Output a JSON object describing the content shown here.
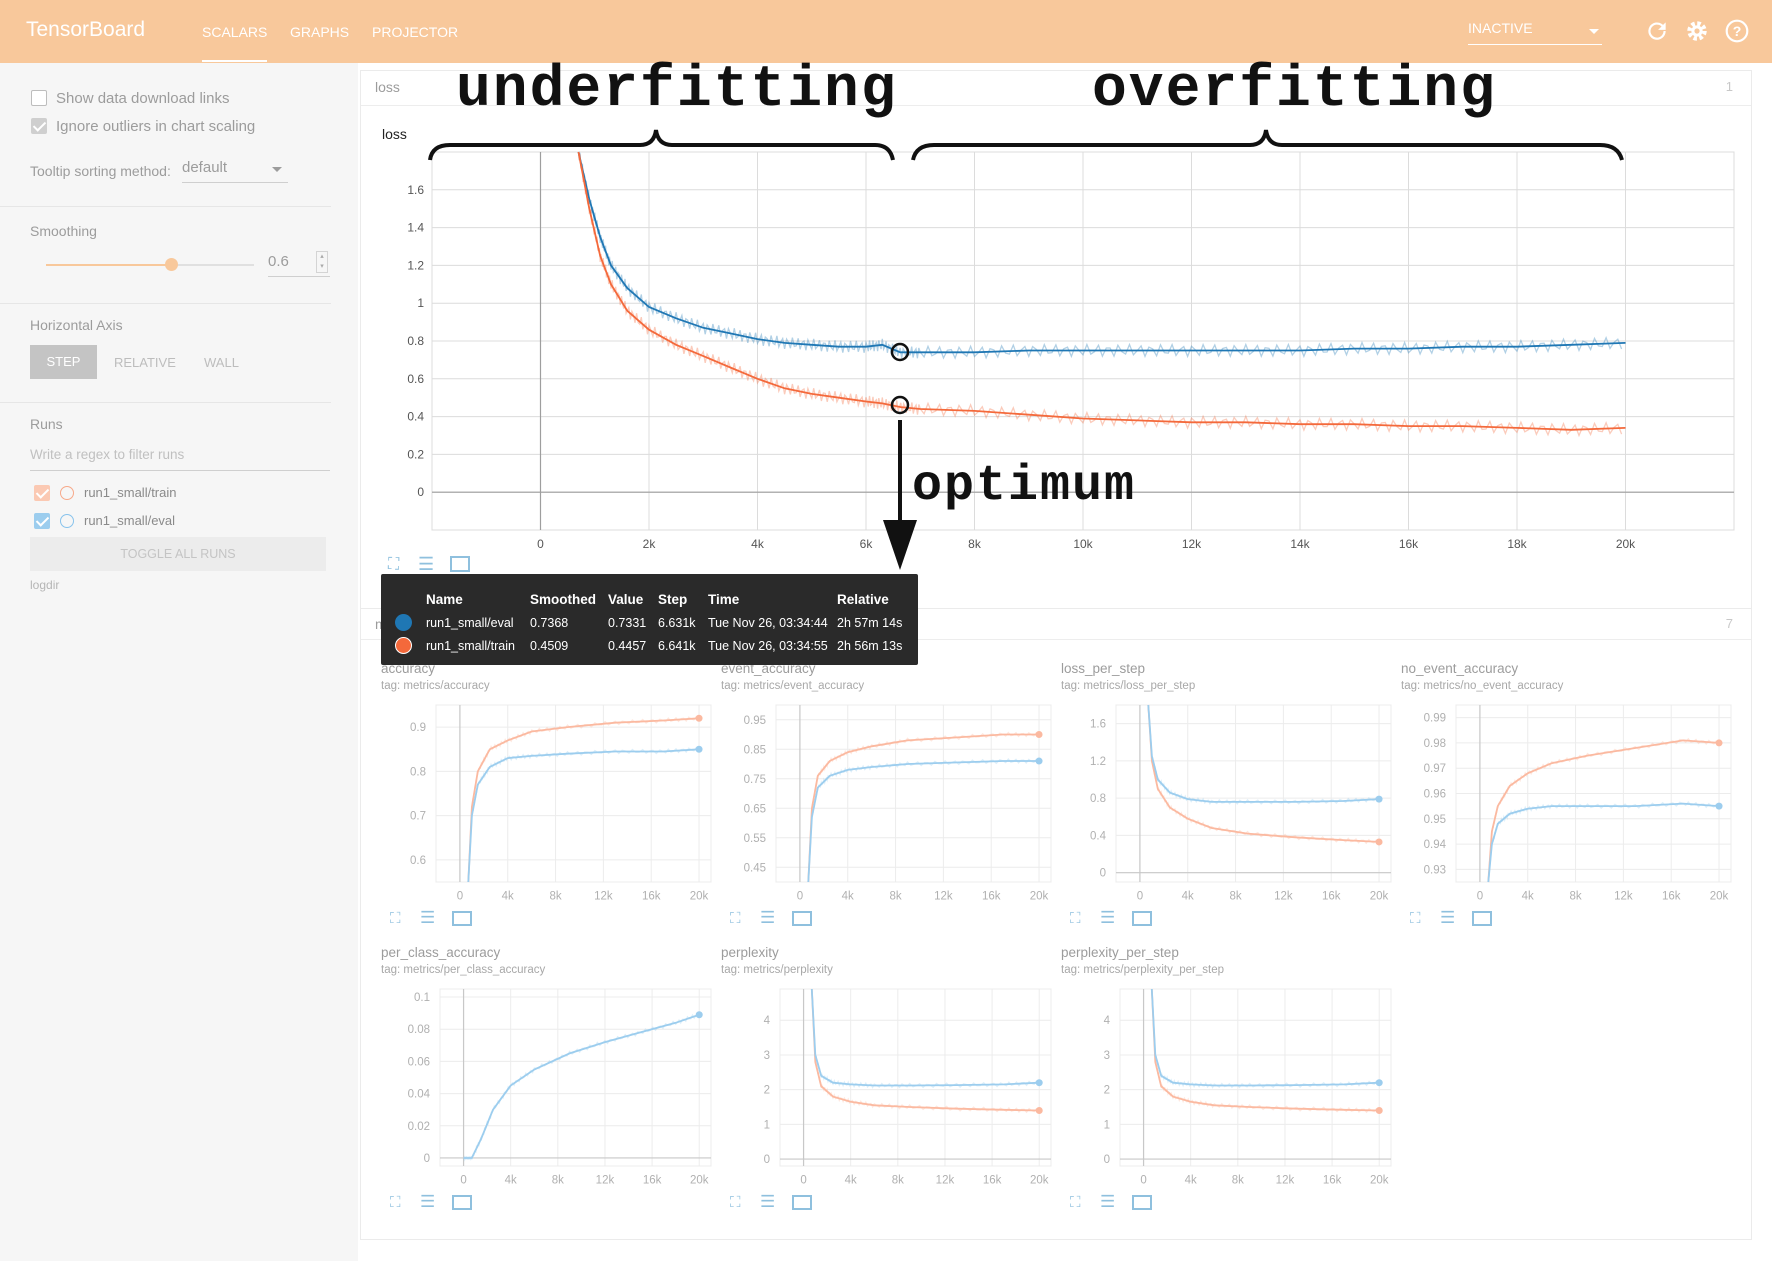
{
  "topbar": {
    "brand": "TensorBoard",
    "tabs": [
      {
        "label": "SCALARS"
      },
      {
        "label": "GRAPHS"
      },
      {
        "label": "PROJECTOR"
      }
    ],
    "status": "INACTIVE",
    "icons": [
      "refresh-icon",
      "settings-icon",
      "help-icon"
    ]
  },
  "sidebar": {
    "show_download": "Show data download links",
    "ignore_outliers": "Ignore outliers in chart scaling",
    "tooltip_label": "Tooltip sorting method:",
    "tooltip_value": "default",
    "smoothing_label": "Smoothing",
    "smoothing_value": "0.6",
    "smoothing_level": 0.6,
    "axis_label": "Horizontal Axis",
    "axis_options": [
      "STEP",
      "RELATIVE",
      "WALL"
    ],
    "runs_label": "Runs",
    "runs_filter_placeholder": "Write a regex to filter runs",
    "runs": [
      {
        "name": "run1_small/train",
        "color": "#f5a582"
      },
      {
        "name": "run1_small/eval",
        "color": "#88c3ec"
      }
    ],
    "toggle_all": "TOGGLE ALL RUNS",
    "logdir": "logdir"
  },
  "loss_section": {
    "name": "loss",
    "count": "1",
    "chart_title": "loss"
  },
  "metrics_section": {
    "name": "metrics",
    "count": "7"
  },
  "annotations": {
    "underfitting": "underfitting",
    "overfitting": "overfitting",
    "optimum": "optimum"
  },
  "tooltip": {
    "headers": [
      "Name",
      "Smoothed",
      "Value",
      "Step",
      "Time",
      "Relative"
    ],
    "rows": [
      {
        "color": "#1f77b4",
        "name": "run1_small/eval",
        "smoothed": "0.7368",
        "value": "0.7331",
        "step": "6.631k",
        "time": "Tue Nov 26, 03:34:44",
        "relative": "2h 57m 14s"
      },
      {
        "color": "#f4693b",
        "name": "run1_small/train",
        "smoothed": "0.4509",
        "value": "0.4457",
        "step": "6.641k",
        "time": "Tue Nov 26, 03:34:55",
        "relative": "2h 56m 13s"
      }
    ]
  },
  "small_charts": [
    {
      "title": "accuracy",
      "tag": "tag: metrics/accuracy"
    },
    {
      "title": "event_accuracy",
      "tag": "tag: metrics/event_accuracy"
    },
    {
      "title": "loss_per_step",
      "tag": "tag: metrics/loss_per_step"
    },
    {
      "title": "no_event_accuracy",
      "tag": "tag: metrics/no_event_accuracy"
    },
    {
      "title": "per_class_accuracy",
      "tag": "tag: metrics/per_class_accuracy"
    },
    {
      "title": "perplexity",
      "tag": "tag: metrics/perplexity"
    },
    {
      "title": "perplexity_per_step",
      "tag": "tag: metrics/perplexity_per_step"
    }
  ],
  "chart_data": [
    {
      "type": "line",
      "title": "loss",
      "x_ticks": [
        "0",
        "2k",
        "4k",
        "6k",
        "8k",
        "10k",
        "12k",
        "14k",
        "16k",
        "18k",
        "20k"
      ],
      "y_ticks": [
        "0",
        "0.2",
        "0.4",
        "0.6",
        "0.8",
        "1",
        "1.2",
        "1.4",
        "1.6"
      ],
      "xlim": [
        -2000,
        22000
      ],
      "ylim": [
        -0.2,
        1.8
      ],
      "series": [
        {
          "name": "run1_small/eval",
          "color": "#1f77b4",
          "x": [
            700,
            900,
            1100,
            1300,
            1600,
            2000,
            2500,
            3000,
            3500,
            4000,
            4500,
            5000,
            5500,
            6000,
            6300,
            6631,
            7000,
            8000,
            9000,
            10000,
            11000,
            12000,
            13000,
            14000,
            15000,
            16000,
            17000,
            18000,
            19000,
            20000
          ],
          "y": [
            1.8,
            1.55,
            1.35,
            1.2,
            1.08,
            0.98,
            0.92,
            0.87,
            0.84,
            0.81,
            0.79,
            0.78,
            0.77,
            0.77,
            0.78,
            0.74,
            0.74,
            0.74,
            0.75,
            0.75,
            0.75,
            0.75,
            0.75,
            0.75,
            0.76,
            0.76,
            0.77,
            0.77,
            0.78,
            0.79
          ]
        },
        {
          "name": "run1_small/train",
          "color": "#f4693b",
          "x": [
            700,
            900,
            1100,
            1300,
            1600,
            2000,
            2500,
            3000,
            3500,
            4000,
            4500,
            5000,
            5500,
            6000,
            6300,
            6641,
            7000,
            8000,
            9000,
            10000,
            11000,
            12000,
            13000,
            14000,
            15000,
            16000,
            17000,
            18000,
            19000,
            20000
          ],
          "y": [
            1.8,
            1.5,
            1.25,
            1.1,
            0.96,
            0.86,
            0.78,
            0.72,
            0.66,
            0.6,
            0.55,
            0.52,
            0.5,
            0.48,
            0.47,
            0.45,
            0.44,
            0.43,
            0.41,
            0.39,
            0.38,
            0.37,
            0.37,
            0.36,
            0.36,
            0.35,
            0.35,
            0.34,
            0.33,
            0.34
          ]
        }
      ]
    },
    {
      "type": "line",
      "title": "accuracy",
      "x_ticks": [
        "0",
        "4k",
        "8k",
        "12k",
        "16k",
        "20k"
      ],
      "y_ticks": [
        "0.6",
        "0.7",
        "0.8",
        "0.9"
      ],
      "xlim": [
        -2000,
        21000
      ],
      "ylim": [
        0.55,
        0.95
      ],
      "series": [
        {
          "name": "run1_small/train",
          "x": [
            700,
            1000,
            1500,
            2500,
            4000,
            6000,
            9000,
            13000,
            17000,
            20000
          ],
          "y": [
            0.55,
            0.72,
            0.8,
            0.85,
            0.87,
            0.89,
            0.9,
            0.91,
            0.915,
            0.92
          ]
        },
        {
          "name": "run1_small/eval",
          "x": [
            700,
            1000,
            1500,
            2500,
            4000,
            6000,
            9000,
            13000,
            17000,
            20000
          ],
          "y": [
            0.55,
            0.7,
            0.77,
            0.81,
            0.83,
            0.835,
            0.84,
            0.845,
            0.845,
            0.85
          ]
        }
      ]
    },
    {
      "type": "line",
      "title": "event_accuracy",
      "x_ticks": [
        "0",
        "4k",
        "8k",
        "12k",
        "16k",
        "20k"
      ],
      "y_ticks": [
        "0.45",
        "0.55",
        "0.65",
        "0.75",
        "0.85",
        "0.95"
      ],
      "xlim": [
        -2000,
        21000
      ],
      "ylim": [
        0.4,
        1.0
      ],
      "series": [
        {
          "name": "run1_small/train",
          "x": [
            700,
            1000,
            1500,
            2500,
            4000,
            6000,
            9000,
            13000,
            17000,
            20000
          ],
          "y": [
            0.4,
            0.65,
            0.76,
            0.81,
            0.84,
            0.86,
            0.88,
            0.89,
            0.9,
            0.9
          ]
        },
        {
          "name": "run1_small/eval",
          "x": [
            700,
            1000,
            1500,
            2500,
            4000,
            6000,
            9000,
            13000,
            17000,
            20000
          ],
          "y": [
            0.4,
            0.62,
            0.72,
            0.76,
            0.78,
            0.79,
            0.8,
            0.805,
            0.81,
            0.81
          ]
        }
      ]
    },
    {
      "type": "line",
      "title": "loss_per_step",
      "x_ticks": [
        "0",
        "4k",
        "8k",
        "12k",
        "16k",
        "20k"
      ],
      "y_ticks": [
        "0",
        "0.4",
        "0.8",
        "1.2",
        "1.6"
      ],
      "xlim": [
        -2000,
        21000
      ],
      "ylim": [
        -0.1,
        1.8
      ],
      "series": [
        {
          "name": "run1_small/train",
          "x": [
            700,
            1000,
            1500,
            2500,
            4000,
            6000,
            9000,
            13000,
            17000,
            20000
          ],
          "y": [
            1.8,
            1.2,
            0.9,
            0.7,
            0.58,
            0.48,
            0.42,
            0.38,
            0.35,
            0.33
          ]
        },
        {
          "name": "run1_small/eval",
          "x": [
            700,
            1000,
            1500,
            2500,
            4000,
            6000,
            9000,
            13000,
            17000,
            20000
          ],
          "y": [
            1.8,
            1.25,
            1.0,
            0.86,
            0.79,
            0.76,
            0.76,
            0.76,
            0.77,
            0.79
          ]
        }
      ]
    },
    {
      "type": "line",
      "title": "no_event_accuracy",
      "x_ticks": [
        "0",
        "4k",
        "8k",
        "12k",
        "16k",
        "20k"
      ],
      "y_ticks": [
        "0.93",
        "0.94",
        "0.95",
        "0.96",
        "0.97",
        "0.98",
        "0.99"
      ],
      "xlim": [
        -2000,
        21000
      ],
      "ylim": [
        0.925,
        0.995
      ],
      "series": [
        {
          "name": "run1_small/train",
          "x": [
            700,
            1000,
            1500,
            2500,
            4000,
            6000,
            9000,
            13000,
            17000,
            20000
          ],
          "y": [
            0.925,
            0.945,
            0.955,
            0.963,
            0.968,
            0.972,
            0.975,
            0.978,
            0.981,
            0.98
          ]
        },
        {
          "name": "run1_small/eval",
          "x": [
            700,
            1000,
            1500,
            2500,
            4000,
            6000,
            9000,
            13000,
            17000,
            20000
          ],
          "y": [
            0.925,
            0.94,
            0.948,
            0.952,
            0.954,
            0.955,
            0.955,
            0.955,
            0.956,
            0.955
          ]
        }
      ]
    },
    {
      "type": "line",
      "title": "per_class_accuracy",
      "x_ticks": [
        "0",
        "4k",
        "8k",
        "12k",
        "16k",
        "20k"
      ],
      "y_ticks": [
        "0",
        "0.02",
        "0.04",
        "0.06",
        "0.08",
        "0.1"
      ],
      "xlim": [
        -2000,
        21000
      ],
      "ylim": [
        -0.005,
        0.105
      ],
      "series": [
        {
          "name": "run1_small/eval",
          "x": [
            0,
            700,
            1500,
            2500,
            4000,
            6000,
            9000,
            12000,
            15000,
            18000,
            20000
          ],
          "y": [
            0,
            0,
            0.012,
            0.03,
            0.045,
            0.055,
            0.065,
            0.072,
            0.078,
            0.084,
            0.089
          ]
        }
      ]
    },
    {
      "type": "line",
      "title": "perplexity",
      "x_ticks": [
        "0",
        "4k",
        "8k",
        "12k",
        "16k",
        "20k"
      ],
      "y_ticks": [
        "0",
        "1",
        "2",
        "3",
        "4"
      ],
      "xlim": [
        -2000,
        21000
      ],
      "ylim": [
        -0.2,
        4.9
      ],
      "series": [
        {
          "name": "run1_small/train",
          "x": [
            700,
            1000,
            1500,
            2500,
            4000,
            6000,
            9000,
            13000,
            17000,
            20000
          ],
          "y": [
            4.9,
            2.8,
            2.1,
            1.8,
            1.65,
            1.55,
            1.5,
            1.45,
            1.42,
            1.4
          ]
        },
        {
          "name": "run1_small/eval",
          "x": [
            700,
            1000,
            1500,
            2500,
            4000,
            6000,
            9000,
            13000,
            17000,
            20000
          ],
          "y": [
            4.9,
            3.0,
            2.4,
            2.2,
            2.15,
            2.12,
            2.12,
            2.13,
            2.15,
            2.2
          ]
        }
      ]
    },
    {
      "type": "line",
      "title": "perplexity_per_step",
      "x_ticks": [
        "0",
        "4k",
        "8k",
        "12k",
        "16k",
        "20k"
      ],
      "y_ticks": [
        "0",
        "1",
        "2",
        "3",
        "4"
      ],
      "xlim": [
        -2000,
        21000
      ],
      "ylim": [
        -0.2,
        4.9
      ],
      "series": [
        {
          "name": "run1_small/train",
          "x": [
            700,
            1000,
            1500,
            2500,
            4000,
            6000,
            9000,
            13000,
            17000,
            20000
          ],
          "y": [
            4.9,
            2.8,
            2.1,
            1.8,
            1.65,
            1.55,
            1.5,
            1.45,
            1.42,
            1.4
          ]
        },
        {
          "name": "run1_small/eval",
          "x": [
            700,
            1000,
            1500,
            2500,
            4000,
            6000,
            9000,
            13000,
            17000,
            20000
          ],
          "y": [
            4.9,
            3.0,
            2.4,
            2.2,
            2.15,
            2.12,
            2.12,
            2.13,
            2.15,
            2.2
          ]
        }
      ]
    }
  ]
}
